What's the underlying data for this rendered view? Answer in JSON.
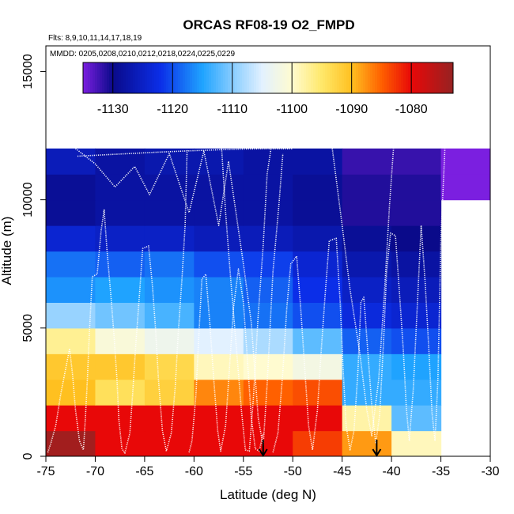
{
  "chart_data": {
    "type": "heatmap",
    "title": "ORCAS RF08-19 O2_FMPD",
    "flights_note": "Flts: 8,9,10,11,14,17,18,19",
    "dates_note": "MMDD: 0205,0208,0210,0212,0218,0224,0225,0229",
    "xlabel": "Latitude (deg N)",
    "ylabel": "Altitude (m)",
    "xlim": [
      -75,
      -30
    ],
    "ylim": [
      0,
      16000
    ],
    "x_ticks": [
      -75,
      -70,
      -65,
      -60,
      -55,
      -50,
      -45,
      -40,
      -35,
      -30
    ],
    "x_tick_labels": [
      "-75",
      "-70",
      "-65",
      "-60",
      "-55",
      "-50",
      "-45",
      "-40",
      "-35",
      "-30"
    ],
    "y_ticks": [
      0,
      5000,
      10000,
      15000
    ],
    "y_tick_labels": [
      "0",
      "5000",
      "10000",
      "15000"
    ],
    "cell_width_deg": 5,
    "cell_height_m": 1000,
    "colorbar": {
      "range": [
        -1135,
        -1073
      ],
      "ticks": [
        -1130,
        -1120,
        -1110,
        -1100,
        -1090,
        -1080
      ],
      "tick_labels": [
        "-1130",
        "-1120",
        "-1110",
        "-1100",
        "-1090",
        "-1080"
      ],
      "stops": [
        {
          "v": -1135,
          "c": "#7b1fe0"
        },
        {
          "v": -1130,
          "c": "#0a0a8a"
        },
        {
          "v": -1122,
          "c": "#0b2ee8"
        },
        {
          "v": -1115,
          "c": "#1fa3ff"
        },
        {
          "v": -1110,
          "c": "#86ccff"
        },
        {
          "v": -1105,
          "c": "#e2f1ff"
        },
        {
          "v": -1100,
          "c": "#fffbd0"
        },
        {
          "v": -1095,
          "c": "#ffe86a"
        },
        {
          "v": -1090,
          "c": "#ffc020"
        },
        {
          "v": -1085,
          "c": "#ff6000"
        },
        {
          "v": -1080,
          "c": "#e80808"
        },
        {
          "v": -1073,
          "c": "#962222"
        }
      ]
    },
    "cells": [
      {
        "lon": -75,
        "alt": 0,
        "value": -1074
      },
      {
        "lon": -70,
        "alt": 0,
        "value": -1080
      },
      {
        "lon": -65,
        "alt": 0,
        "value": -1080
      },
      {
        "lon": -60,
        "alt": 0,
        "value": -1080
      },
      {
        "lon": -55,
        "alt": 0,
        "value": -1080
      },
      {
        "lon": -50,
        "alt": 0,
        "value": -1083
      },
      {
        "lon": -45,
        "alt": 0,
        "value": -1088
      },
      {
        "lon": -40,
        "alt": 0,
        "value": -1099
      },
      {
        "lon": -75,
        "alt": 1000,
        "value": -1080
      },
      {
        "lon": -70,
        "alt": 1000,
        "value": -1080
      },
      {
        "lon": -65,
        "alt": 1000,
        "value": -1080
      },
      {
        "lon": -60,
        "alt": 1000,
        "value": -1080
      },
      {
        "lon": -55,
        "alt": 1000,
        "value": -1080
      },
      {
        "lon": -50,
        "alt": 1000,
        "value": -1080
      },
      {
        "lon": -45,
        "alt": 1000,
        "value": -1098
      },
      {
        "lon": -40,
        "alt": 1000,
        "value": -1112
      },
      {
        "lon": -75,
        "alt": 2000,
        "value": -1090
      },
      {
        "lon": -70,
        "alt": 2000,
        "value": -1094
      },
      {
        "lon": -65,
        "alt": 2000,
        "value": -1092
      },
      {
        "lon": -60,
        "alt": 2000,
        "value": -1087
      },
      {
        "lon": -55,
        "alt": 2000,
        "value": -1085
      },
      {
        "lon": -50,
        "alt": 2000,
        "value": -1084
      },
      {
        "lon": -45,
        "alt": 2000,
        "value": -1114
      },
      {
        "lon": -40,
        "alt": 2000,
        "value": -1114
      },
      {
        "lon": -75,
        "alt": 3000,
        "value": -1091
      },
      {
        "lon": -70,
        "alt": 3000,
        "value": -1091
      },
      {
        "lon": -65,
        "alt": 3000,
        "value": -1093
      },
      {
        "lon": -60,
        "alt": 3000,
        "value": -1099
      },
      {
        "lon": -55,
        "alt": 3000,
        "value": -1100
      },
      {
        "lon": -50,
        "alt": 3000,
        "value": -1102
      },
      {
        "lon": -45,
        "alt": 3000,
        "value": -1114
      },
      {
        "lon": -40,
        "alt": 3000,
        "value": -1115
      },
      {
        "lon": -75,
        "alt": 4000,
        "value": -1097
      },
      {
        "lon": -70,
        "alt": 4000,
        "value": -1101
      },
      {
        "lon": -65,
        "alt": 4000,
        "value": -1103
      },
      {
        "lon": -60,
        "alt": 4000,
        "value": -1105
      },
      {
        "lon": -55,
        "alt": 4000,
        "value": -1108
      },
      {
        "lon": -50,
        "alt": 4000,
        "value": -1112
      },
      {
        "lon": -45,
        "alt": 4000,
        "value": -1119
      },
      {
        "lon": -40,
        "alt": 4000,
        "value": -1120
      },
      {
        "lon": -75,
        "alt": 5000,
        "value": -1109
      },
      {
        "lon": -70,
        "alt": 5000,
        "value": -1111
      },
      {
        "lon": -65,
        "alt": 5000,
        "value": -1113
      },
      {
        "lon": -60,
        "alt": 5000,
        "value": -1117
      },
      {
        "lon": -55,
        "alt": 5000,
        "value": -1118
      },
      {
        "lon": -50,
        "alt": 5000,
        "value": -1120
      },
      {
        "lon": -45,
        "alt": 5000,
        "value": -1123
      },
      {
        "lon": -40,
        "alt": 5000,
        "value": -1124
      },
      {
        "lon": -75,
        "alt": 6000,
        "value": -1116
      },
      {
        "lon": -70,
        "alt": 6000,
        "value": -1115
      },
      {
        "lon": -65,
        "alt": 6000,
        "value": -1116
      },
      {
        "lon": -60,
        "alt": 6000,
        "value": -1117
      },
      {
        "lon": -55,
        "alt": 6000,
        "value": -1119
      },
      {
        "lon": -50,
        "alt": 6000,
        "value": -1122
      },
      {
        "lon": -45,
        "alt": 6000,
        "value": -1125
      },
      {
        "lon": -40,
        "alt": 6000,
        "value": -1126
      },
      {
        "lon": -75,
        "alt": 7000,
        "value": -1118
      },
      {
        "lon": -70,
        "alt": 7000,
        "value": -1119
      },
      {
        "lon": -65,
        "alt": 7000,
        "value": -1118
      },
      {
        "lon": -60,
        "alt": 7000,
        "value": -1120
      },
      {
        "lon": -55,
        "alt": 7000,
        "value": -1121
      },
      {
        "lon": -50,
        "alt": 7000,
        "value": -1124
      },
      {
        "lon": -45,
        "alt": 7000,
        "value": -1127
      },
      {
        "lon": -40,
        "alt": 7000,
        "value": -1128
      },
      {
        "lon": -75,
        "alt": 8000,
        "value": -1124
      },
      {
        "lon": -70,
        "alt": 8000,
        "value": -1125
      },
      {
        "lon": -65,
        "alt": 8000,
        "value": -1125
      },
      {
        "lon": -60,
        "alt": 8000,
        "value": -1126
      },
      {
        "lon": -55,
        "alt": 8000,
        "value": -1126
      },
      {
        "lon": -50,
        "alt": 8000,
        "value": -1127
      },
      {
        "lon": -45,
        "alt": 8000,
        "value": -1129
      },
      {
        "lon": -40,
        "alt": 8000,
        "value": -1130
      },
      {
        "lon": -75,
        "alt": 9000,
        "value": -1129
      },
      {
        "lon": -70,
        "alt": 9000,
        "value": -1128
      },
      {
        "lon": -65,
        "alt": 9000,
        "value": -1128
      },
      {
        "lon": -60,
        "alt": 9000,
        "value": -1128
      },
      {
        "lon": -55,
        "alt": 9000,
        "value": -1128
      },
      {
        "lon": -50,
        "alt": 9000,
        "value": -1129
      },
      {
        "lon": -45,
        "alt": 9000,
        "value": -1131
      },
      {
        "lon": -40,
        "alt": 9000,
        "value": -1131
      },
      {
        "lon": -75,
        "alt": 10000,
        "value": -1129
      },
      {
        "lon": -70,
        "alt": 10000,
        "value": -1128
      },
      {
        "lon": -65,
        "alt": 10000,
        "value": -1128
      },
      {
        "lon": -60,
        "alt": 10000,
        "value": -1128
      },
      {
        "lon": -55,
        "alt": 10000,
        "value": -1128
      },
      {
        "lon": -50,
        "alt": 10000,
        "value": -1129
      },
      {
        "lon": -45,
        "alt": 10000,
        "value": -1131
      },
      {
        "lon": -40,
        "alt": 10000,
        "value": -1131
      },
      {
        "lon": -35,
        "alt": 10000,
        "value": -1135
      },
      {
        "lon": -75,
        "alt": 11000,
        "value": -1126
      },
      {
        "lon": -70,
        "alt": 11000,
        "value": -1128
      },
      {
        "lon": -65,
        "alt": 11000,
        "value": -1127
      },
      {
        "lon": -60,
        "alt": 11000,
        "value": -1127
      },
      {
        "lon": -55,
        "alt": 11000,
        "value": -1128
      },
      {
        "lon": -50,
        "alt": 11000,
        "value": -1128
      },
      {
        "lon": -45,
        "alt": 11000,
        "value": -1132
      },
      {
        "lon": -40,
        "alt": 11000,
        "value": -1132
      },
      {
        "lon": -35,
        "alt": 11000,
        "value": -1135
      }
    ],
    "arrows_at_latitude": [
      -53,
      -41.5
    ],
    "flight_tracks": [
      [
        [
          -74.8,
          150
        ],
        [
          -74.5,
          500
        ],
        [
          -74,
          1200
        ],
        [
          -73.5,
          2400
        ],
        [
          -73,
          3400
        ],
        [
          -72.6,
          4200
        ],
        [
          -72.3,
          3200
        ],
        [
          -72,
          1800
        ],
        [
          -71.6,
          600
        ],
        [
          -71.2,
          250
        ],
        [
          -71,
          1500
        ],
        [
          -70.8,
          3000
        ],
        [
          -70.6,
          4800
        ],
        [
          -70.3,
          7000
        ],
        [
          -69.8,
          7100
        ],
        [
          -69.4,
          8800
        ],
        [
          -69.1,
          9600
        ],
        [
          -68.8,
          8000
        ],
        [
          -68.4,
          6200
        ],
        [
          -68.1,
          4700
        ],
        [
          -67.8,
          3000
        ],
        [
          -67.6,
          1400
        ],
        [
          -67.3,
          300
        ],
        [
          -67,
          120
        ],
        [
          -66.5,
          900
        ],
        [
          -66.2,
          2500
        ],
        [
          -65.9,
          4300
        ],
        [
          -65.5,
          6400
        ],
        [
          -65.2,
          8100
        ],
        [
          -64.6,
          8200
        ],
        [
          -64.2,
          6600
        ],
        [
          -63.9,
          5000
        ],
        [
          -63.6,
          3000
        ],
        [
          -63.2,
          1000
        ],
        [
          -62.8,
          200
        ],
        [
          -62.3,
          900
        ],
        [
          -61.9,
          2700
        ],
        [
          -61.6,
          4800
        ],
        [
          -61.2,
          7000
        ],
        [
          -60.9,
          9000
        ],
        [
          -60.7,
          11950
        ]
      ],
      [
        [
          -71.8,
          11700
        ],
        [
          -64,
          11850
        ],
        [
          -61,
          11900
        ],
        [
          -57.5,
          11950
        ],
        [
          -55,
          11980
        ],
        [
          -52.5,
          11990
        ],
        [
          -50,
          11990
        ]
      ],
      [
        [
          -72,
          12000
        ],
        [
          -70,
          11400
        ],
        [
          -68,
          10500
        ],
        [
          -66,
          11300
        ],
        [
          -64.5,
          10200
        ],
        [
          -62.5,
          11800
        ],
        [
          -60.5,
          9500
        ],
        [
          -59,
          11900
        ],
        [
          -57.5,
          9000
        ],
        [
          -56.5,
          11500
        ],
        [
          -55,
          7500
        ],
        [
          -54.2,
          5200
        ],
        [
          -53.5,
          1500
        ],
        [
          -53,
          400
        ],
        [
          -52.6,
          2800
        ],
        [
          -52,
          7200
        ],
        [
          -51.4,
          9800
        ],
        [
          -51,
          11800
        ]
      ],
      [
        [
          -60.5,
          150
        ],
        [
          -60.2,
          600
        ],
        [
          -59.8,
          2400
        ],
        [
          -59.5,
          4800
        ],
        [
          -59.2,
          6900
        ],
        [
          -58.8,
          7100
        ],
        [
          -58.4,
          5200
        ],
        [
          -58,
          3000
        ],
        [
          -57.6,
          1000
        ],
        [
          -57.3,
          200
        ],
        [
          -56.8,
          1200
        ],
        [
          -56.4,
          3500
        ],
        [
          -56,
          5800
        ],
        [
          -55.5,
          7300
        ],
        [
          -55,
          6000
        ],
        [
          -54.6,
          3800
        ],
        [
          -54.2,
          1500
        ],
        [
          -53.8,
          300
        ],
        [
          -53.4,
          200
        ],
        [
          -53,
          900
        ]
      ],
      [
        [
          -57.2,
          12000
        ],
        [
          -56.8,
          9500
        ],
        [
          -56.3,
          7000
        ],
        [
          -55.7,
          4200
        ],
        [
          -55.2,
          1800
        ],
        [
          -54.8,
          250
        ],
        [
          -54.4,
          200
        ],
        [
          -54,
          2200
        ],
        [
          -53.5,
          5500
        ],
        [
          -53,
          8200
        ],
        [
          -52.6,
          11000
        ],
        [
          -52.2,
          12000
        ]
      ],
      [
        [
          -52,
          150
        ],
        [
          -51.5,
          900
        ],
        [
          -51,
          3300
        ],
        [
          -50.6,
          5800
        ],
        [
          -50.2,
          7500
        ],
        [
          -49.6,
          7800
        ],
        [
          -49.2,
          5800
        ],
        [
          -48.8,
          3500
        ],
        [
          -48.4,
          1200
        ],
        [
          -48,
          250
        ],
        [
          -47.5,
          1800
        ],
        [
          -47.1,
          4200
        ],
        [
          -46.7,
          6400
        ],
        [
          -46.3,
          8400
        ],
        [
          -45.6,
          8500
        ],
        [
          -45.2,
          6000
        ],
        [
          -44.9,
          3400
        ],
        [
          -44.6,
          1200
        ],
        [
          -44.2,
          250
        ],
        [
          -43.8,
          1000
        ],
        [
          -43.4,
          3300
        ],
        [
          -43.1,
          6000
        ],
        [
          -42.8,
          6200
        ],
        [
          -42.4,
          4100
        ],
        [
          -42,
          2000
        ],
        [
          -41.6,
          500
        ],
        [
          -41.2,
          1600
        ],
        [
          -40.8,
          4500
        ],
        [
          -40.5,
          7200
        ],
        [
          -40.1,
          8700
        ],
        [
          -39.6,
          8600
        ],
        [
          -39.2,
          6400
        ],
        [
          -38.8,
          4100
        ],
        [
          -38.5,
          1900
        ],
        [
          -38.2,
          600
        ],
        [
          -37.8,
          2600
        ],
        [
          -37.4,
          5800
        ],
        [
          -37,
          9000
        ],
        [
          -36.6,
          6800
        ],
        [
          -36.2,
          4000
        ],
        [
          -35.9,
          1700
        ],
        [
          -35.6,
          600
        ],
        [
          -35.3,
          3000
        ],
        [
          -35,
          8500
        ],
        [
          -34.6,
          12000
        ]
      ],
      [
        [
          -46,
          12000
        ],
        [
          -45,
          9000
        ],
        [
          -44.2,
          6500
        ],
        [
          -43.2,
          4000
        ],
        [
          -42.5,
          1800
        ],
        [
          -42,
          800
        ],
        [
          -41.3,
          3000
        ],
        [
          -40.7,
          6500
        ],
        [
          -40.2,
          9800
        ],
        [
          -39.8,
          12000
        ]
      ]
    ]
  }
}
